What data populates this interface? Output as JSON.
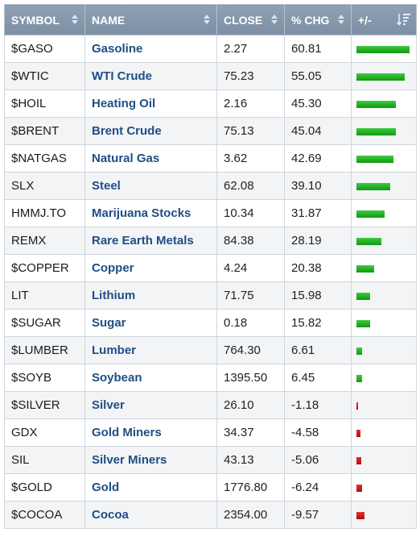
{
  "headers": {
    "symbol": "SYMBOL",
    "name": "NAME",
    "close": "CLOSE",
    "chg": "% CHG",
    "bar": "+/-"
  },
  "colors": {
    "positive": "#1aa81a",
    "negative": "#c41717",
    "header": "#8597ab",
    "link": "#1f4e85"
  },
  "icons": {
    "sort": "sort-arrows-icon",
    "sort_desc": "sort-descending-icon"
  },
  "max_abs_change": 60.81,
  "rows": [
    {
      "symbol": "$GASO",
      "name": "Gasoline",
      "close": "2.27",
      "chg": "60.81"
    },
    {
      "symbol": "$WTIC",
      "name": "WTI Crude",
      "close": "75.23",
      "chg": "55.05"
    },
    {
      "symbol": "$HOIL",
      "name": "Heating Oil",
      "close": "2.16",
      "chg": "45.30"
    },
    {
      "symbol": "$BRENT",
      "name": "Brent Crude",
      "close": "75.13",
      "chg": "45.04"
    },
    {
      "symbol": "$NATGAS",
      "name": "Natural Gas",
      "close": "3.62",
      "chg": "42.69"
    },
    {
      "symbol": "SLX",
      "name": "Steel",
      "close": "62.08",
      "chg": "39.10"
    },
    {
      "symbol": "HMMJ.TO",
      "name": "Marijuana Stocks",
      "close": "10.34",
      "chg": "31.87"
    },
    {
      "symbol": "REMX",
      "name": "Rare Earth Metals",
      "close": "84.38",
      "chg": "28.19"
    },
    {
      "symbol": "$COPPER",
      "name": "Copper",
      "close": "4.24",
      "chg": "20.38"
    },
    {
      "symbol": "LIT",
      "name": "Lithium",
      "close": "71.75",
      "chg": "15.98"
    },
    {
      "symbol": "$SUGAR",
      "name": "Sugar",
      "close": "0.18",
      "chg": "15.82"
    },
    {
      "symbol": "$LUMBER",
      "name": "Lumber",
      "close": "764.30",
      "chg": "6.61"
    },
    {
      "symbol": "$SOYB",
      "name": "Soybean",
      "close": "1395.50",
      "chg": "6.45"
    },
    {
      "symbol": "$SILVER",
      "name": "Silver",
      "close": "26.10",
      "chg": "-1.18"
    },
    {
      "symbol": "GDX",
      "name": "Gold Miners",
      "close": "34.37",
      "chg": "-4.58"
    },
    {
      "symbol": "SIL",
      "name": "Silver Miners",
      "close": "43.13",
      "chg": "-5.06"
    },
    {
      "symbol": "$GOLD",
      "name": "Gold",
      "close": "1776.80",
      "chg": "-6.24"
    },
    {
      "symbol": "$COCOA",
      "name": "Cocoa",
      "close": "2354.00",
      "chg": "-9.57"
    }
  ]
}
